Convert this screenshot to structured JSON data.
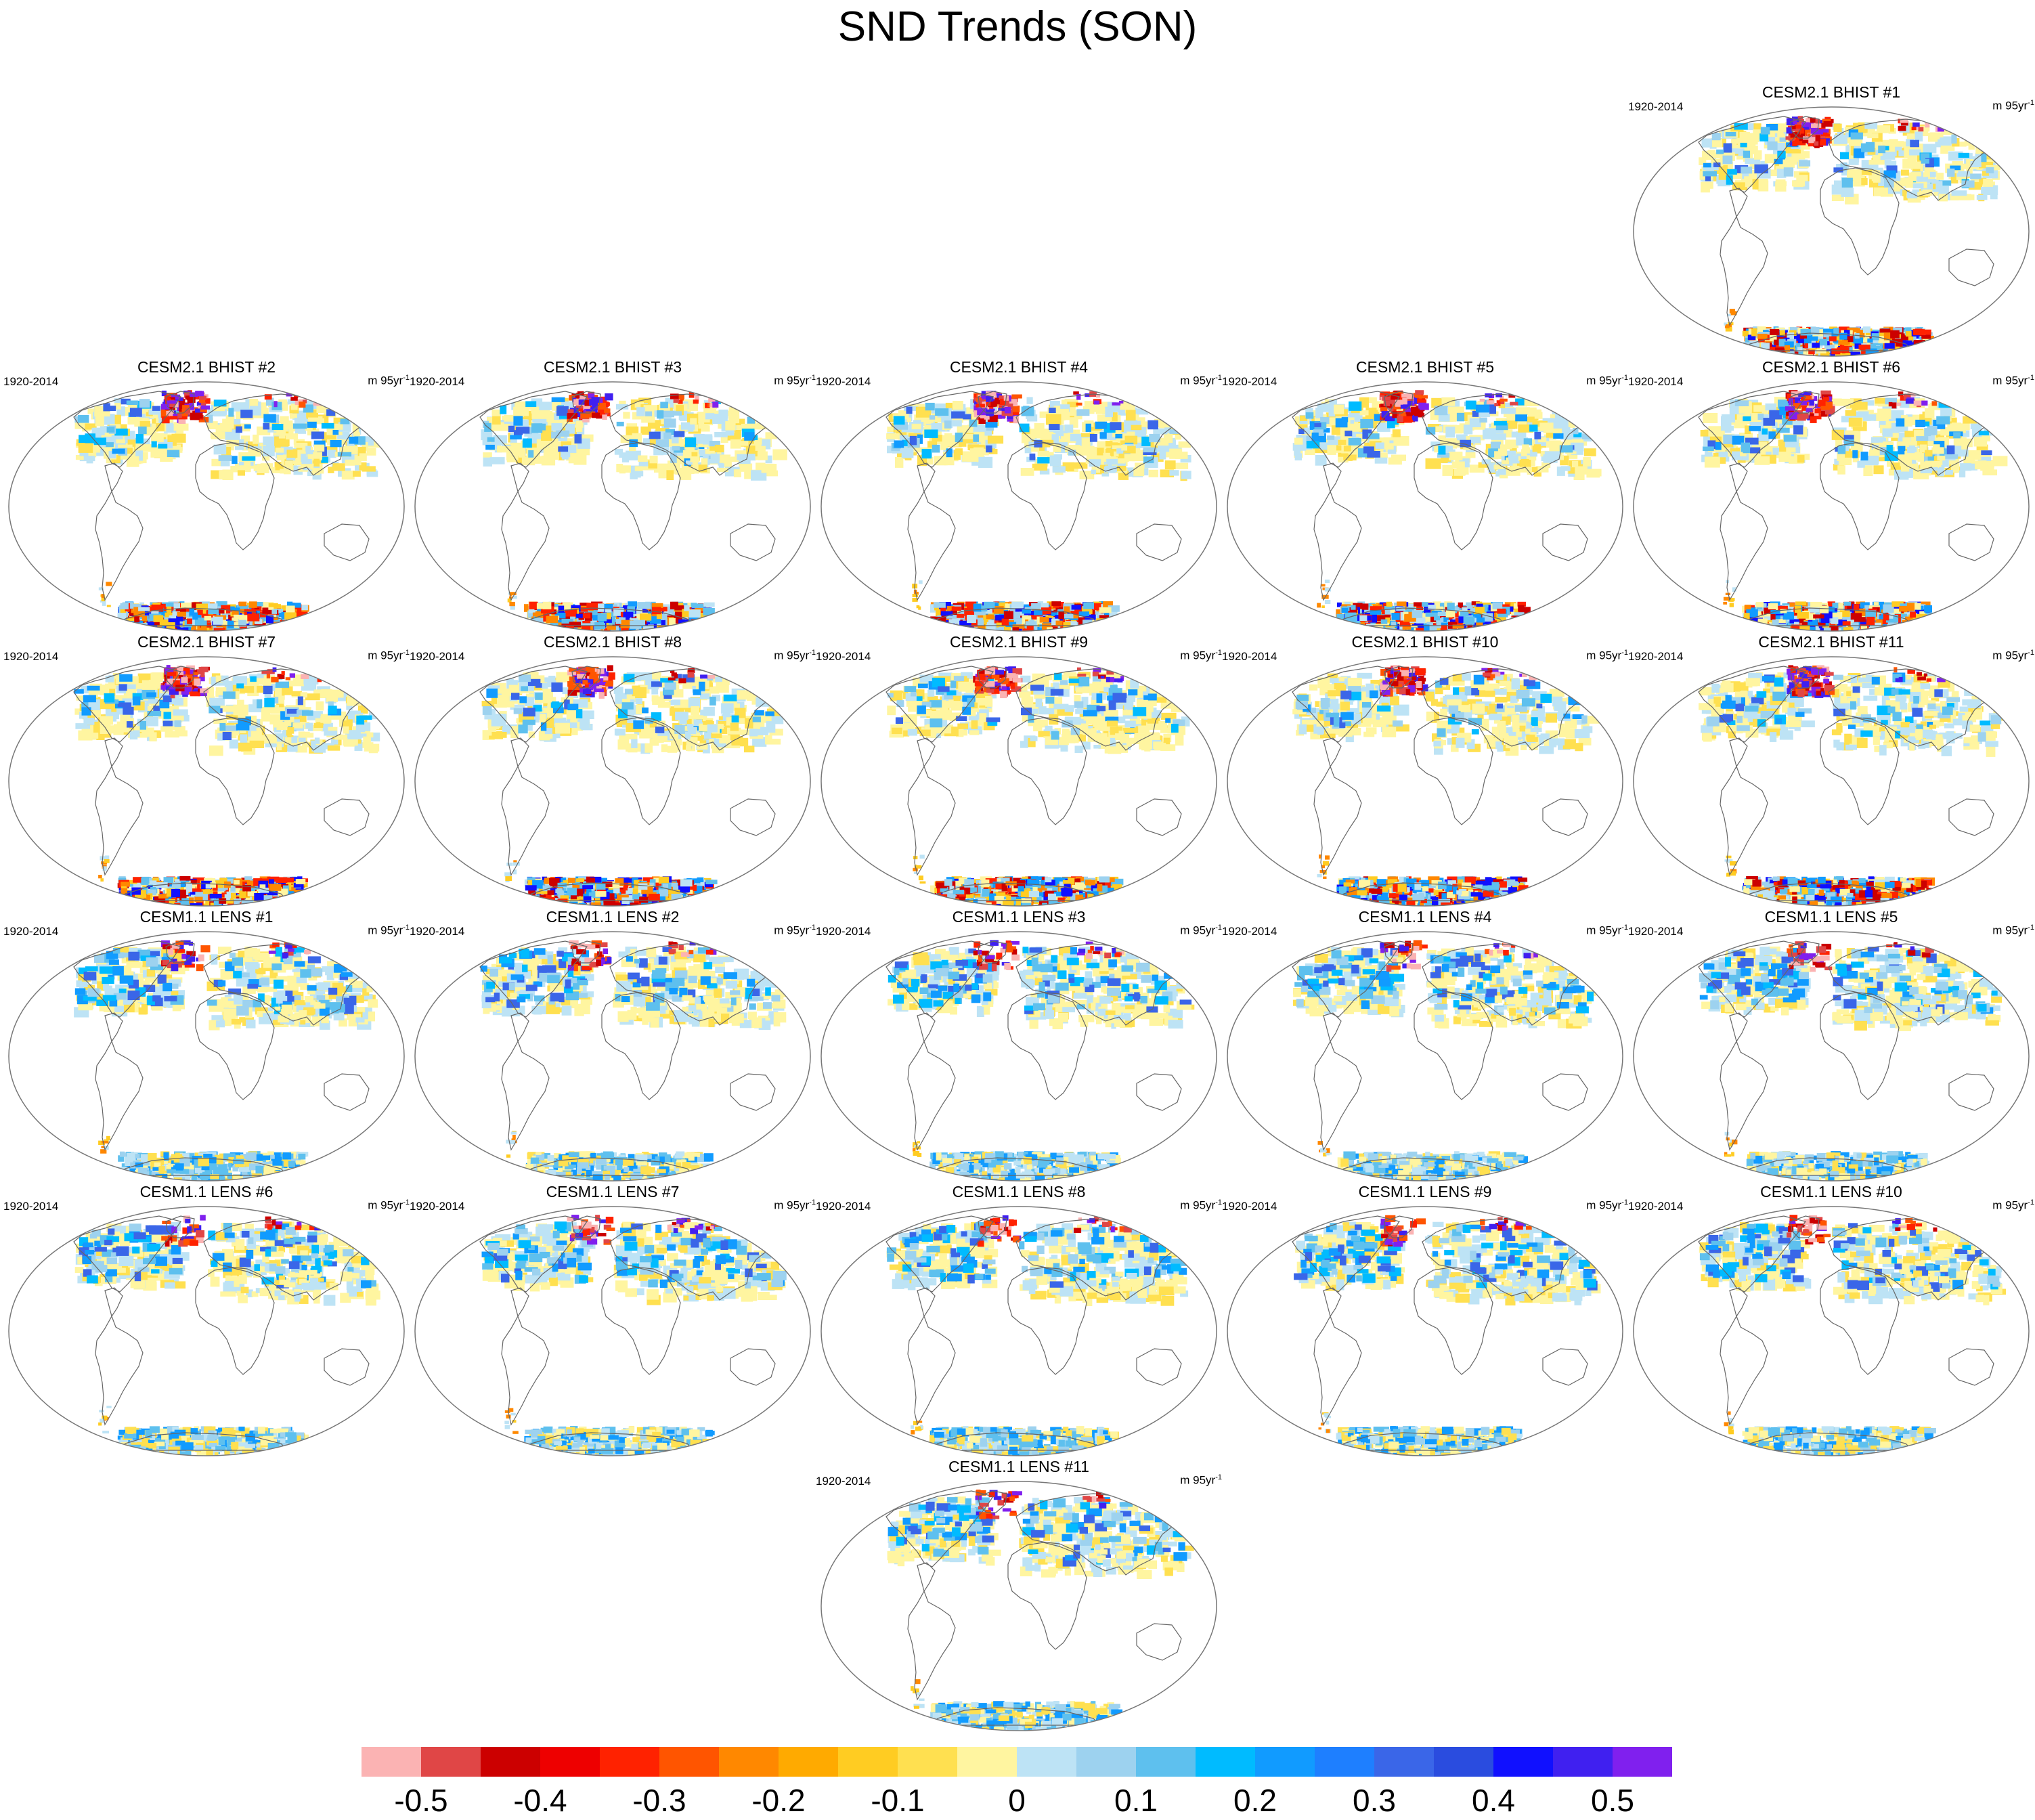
{
  "title": "SND Trends (SON)",
  "period": "1920-2014",
  "units_base": "m 95yr",
  "units_exp": "-1",
  "panels": [
    {
      "title": "CESM2.1 BHIST #1",
      "model": "cesm2"
    },
    {
      "title": "CESM2.1 BHIST #2",
      "model": "cesm2"
    },
    {
      "title": "CESM2.1 BHIST #3",
      "model": "cesm2"
    },
    {
      "title": "CESM2.1 BHIST #4",
      "model": "cesm2"
    },
    {
      "title": "CESM2.1 BHIST #5",
      "model": "cesm2"
    },
    {
      "title": "CESM2.1 BHIST #6",
      "model": "cesm2"
    },
    {
      "title": "CESM2.1 BHIST #7",
      "model": "cesm2"
    },
    {
      "title": "CESM2.1 BHIST #8",
      "model": "cesm2"
    },
    {
      "title": "CESM2.1 BHIST #9",
      "model": "cesm2"
    },
    {
      "title": "CESM2.1 BHIST #10",
      "model": "cesm2"
    },
    {
      "title": "CESM2.1 BHIST #11",
      "model": "cesm2"
    },
    {
      "title": "CESM1.1 LENS #1",
      "model": "cesm1"
    },
    {
      "title": "CESM1.1 LENS #2",
      "model": "cesm1"
    },
    {
      "title": "CESM1.1 LENS #3",
      "model": "cesm1"
    },
    {
      "title": "CESM1.1 LENS #4",
      "model": "cesm1"
    },
    {
      "title": "CESM1.1 LENS #5",
      "model": "cesm1"
    },
    {
      "title": "CESM1.1 LENS #6",
      "model": "cesm1"
    },
    {
      "title": "CESM1.1 LENS #7",
      "model": "cesm1"
    },
    {
      "title": "CESM1.1 LENS #8",
      "model": "cesm1"
    },
    {
      "title": "CESM1.1 LENS #9",
      "model": "cesm1"
    },
    {
      "title": "CESM1.1 LENS #10",
      "model": "cesm1"
    },
    {
      "title": "CESM1.1 LENS #11",
      "model": "cesm1"
    }
  ],
  "colorbar": {
    "colors": [
      "#fbb3b3",
      "#e04646",
      "#cc0000",
      "#ee0000",
      "#ff2200",
      "#ff5500",
      "#ff8800",
      "#ffaa00",
      "#ffcc22",
      "#ffe050",
      "#fff5a0",
      "#bde3f5",
      "#9dd2ef",
      "#5ec0ee",
      "#00bbff",
      "#119bff",
      "#1e7fff",
      "#3a66e8",
      "#2a4cdf",
      "#1010ff",
      "#4020f0",
      "#8020ee"
    ],
    "tick_labels": [
      "-0.5",
      "-0.4",
      "-0.3",
      "-0.2",
      "-0.1",
      "0",
      "0.1",
      "0.2",
      "0.3",
      "0.4",
      "0.5"
    ]
  }
}
